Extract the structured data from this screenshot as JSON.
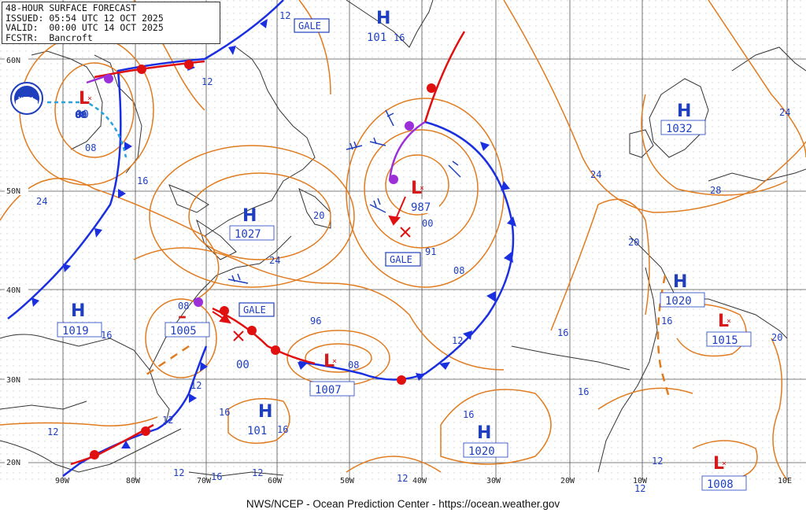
{
  "header": {
    "title": "48-HOUR SURFACE FORECAST",
    "issued": "ISSUED: 05:54 UTC 12 OCT 2025",
    "valid": "VALID:  00:00 UTC 14 OCT 2025",
    "forecaster": "FCSTR:  Bancroft"
  },
  "footer": "NWS/NCEP - Ocean Prediction Center - https://ocean.weather.gov",
  "logo_text": "NOAA",
  "lat_labels": [
    "60N",
    "50N",
    "40N",
    "30N",
    "20N"
  ],
  "lon_labels": [
    "90W",
    "80W",
    "70W",
    "60W",
    "50W",
    "40W",
    "30W",
    "20W",
    "10W",
    "10E"
  ],
  "highs": [
    {
      "symbol": "H",
      "pressure": "101"
    },
    {
      "symbol": "H",
      "pressure": "1032"
    },
    {
      "symbol": "H",
      "pressure": "1027"
    },
    {
      "symbol": "H",
      "pressure": "1020"
    },
    {
      "symbol": "H",
      "pressure": "1019"
    },
    {
      "symbol": "H",
      "pressure": "101"
    },
    {
      "symbol": "H",
      "pressure": "1020"
    }
  ],
  "lows": [
    {
      "symbol": "L",
      "pressure": "987"
    },
    {
      "symbol": "L",
      "pressure": "1007"
    },
    {
      "symbol": "L",
      "pressure": "1005"
    },
    {
      "symbol": "L",
      "pressure": "1015"
    },
    {
      "symbol": "L",
      "pressure": "1008"
    },
    {
      "symbol": "L",
      "pressure": "00"
    }
  ],
  "warnings": [
    "GALE",
    "GALE",
    "GALE"
  ],
  "isobar_labels": [
    "12",
    "12",
    "08",
    "16",
    "24",
    "16",
    "20",
    "24",
    "96",
    "16",
    "12",
    "16",
    "12",
    "12",
    "12",
    "12",
    "08",
    "16",
    "16",
    "24",
    "28",
    "20",
    "16",
    "20",
    "12",
    "16",
    "08",
    "08",
    "91",
    "00",
    "00",
    "12",
    "12",
    "24",
    "16",
    "08",
    "16",
    "16",
    "12",
    "00"
  ],
  "colors": {
    "isobar": "#e07b1f",
    "high": "#1f3fbf",
    "low": "#d41a1a",
    "cold_front": "#1a2fe0",
    "warm_front": "#e01010",
    "occluded_front": "#9b30d9",
    "coast": "#333333",
    "grid": "#555555"
  }
}
